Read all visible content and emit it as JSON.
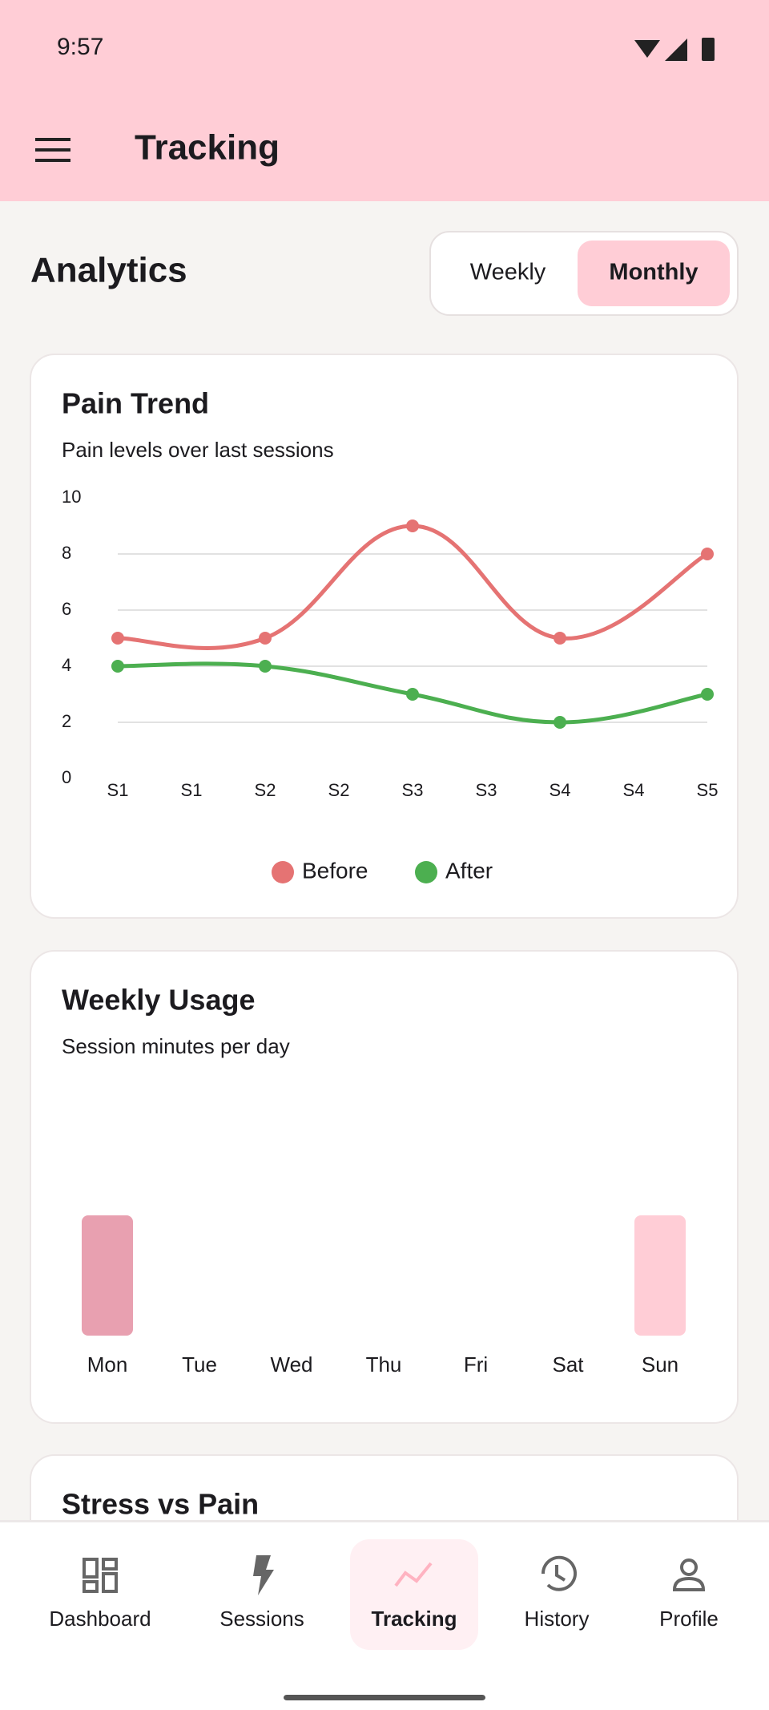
{
  "status_bar": {
    "time": "9:57"
  },
  "app_bar": {
    "title": "Tracking"
  },
  "analytics": {
    "title": "Analytics",
    "tabs": [
      "Weekly",
      "Monthly"
    ],
    "selected_tab": 1
  },
  "pain_trend": {
    "type": "line",
    "title": "Pain Trend",
    "subtitle": "Pain levels over last sessions",
    "x": [
      0,
      1,
      2,
      3,
      4
    ],
    "xlim": [
      0,
      4
    ],
    "xticks": [
      {
        "value": 0,
        "label": "S1"
      },
      {
        "value": 0.5,
        "label": "S1"
      },
      {
        "value": 1,
        "label": "S2"
      },
      {
        "value": 1.5,
        "label": "S2"
      },
      {
        "value": 2,
        "label": "S3"
      },
      {
        "value": 2.5,
        "label": "S3"
      },
      {
        "value": 3,
        "label": "S4"
      },
      {
        "value": 3.5,
        "label": "S4"
      },
      {
        "value": 4,
        "label": "S5"
      }
    ],
    "ylim": [
      0,
      10
    ],
    "yticks": [
      0,
      2,
      4,
      6,
      8,
      10
    ],
    "grid": true,
    "series": [
      {
        "name": "Before",
        "color": "#e57373",
        "values": [
          5,
          5,
          9,
          5,
          8
        ]
      },
      {
        "name": "After",
        "color": "#4caf50",
        "values": [
          4,
          4,
          3,
          2,
          3
        ]
      }
    ]
  },
  "weekly_usage": {
    "type": "bar",
    "title": "Weekly Usage",
    "subtitle": "Session minutes per day",
    "categories": [
      "Mon",
      "Tue",
      "Wed",
      "Thu",
      "Fri",
      "Sat",
      "Sun"
    ],
    "values": [
      30,
      0,
      0,
      0,
      0,
      0,
      30
    ],
    "colors": [
      "#e8a0b0",
      "#e8a0b0",
      "#e8a0b0",
      "#e8a0b0",
      "#e8a0b0",
      "#e8a0b0",
      "#ffcdd6"
    ],
    "ylim": [
      0,
      60
    ]
  },
  "stress_vs_pain": {
    "title": "Stress vs Pain"
  },
  "bottom_nav": {
    "items": [
      "Dashboard",
      "Sessions",
      "Tracking",
      "History",
      "Profile"
    ],
    "selected": 2
  }
}
